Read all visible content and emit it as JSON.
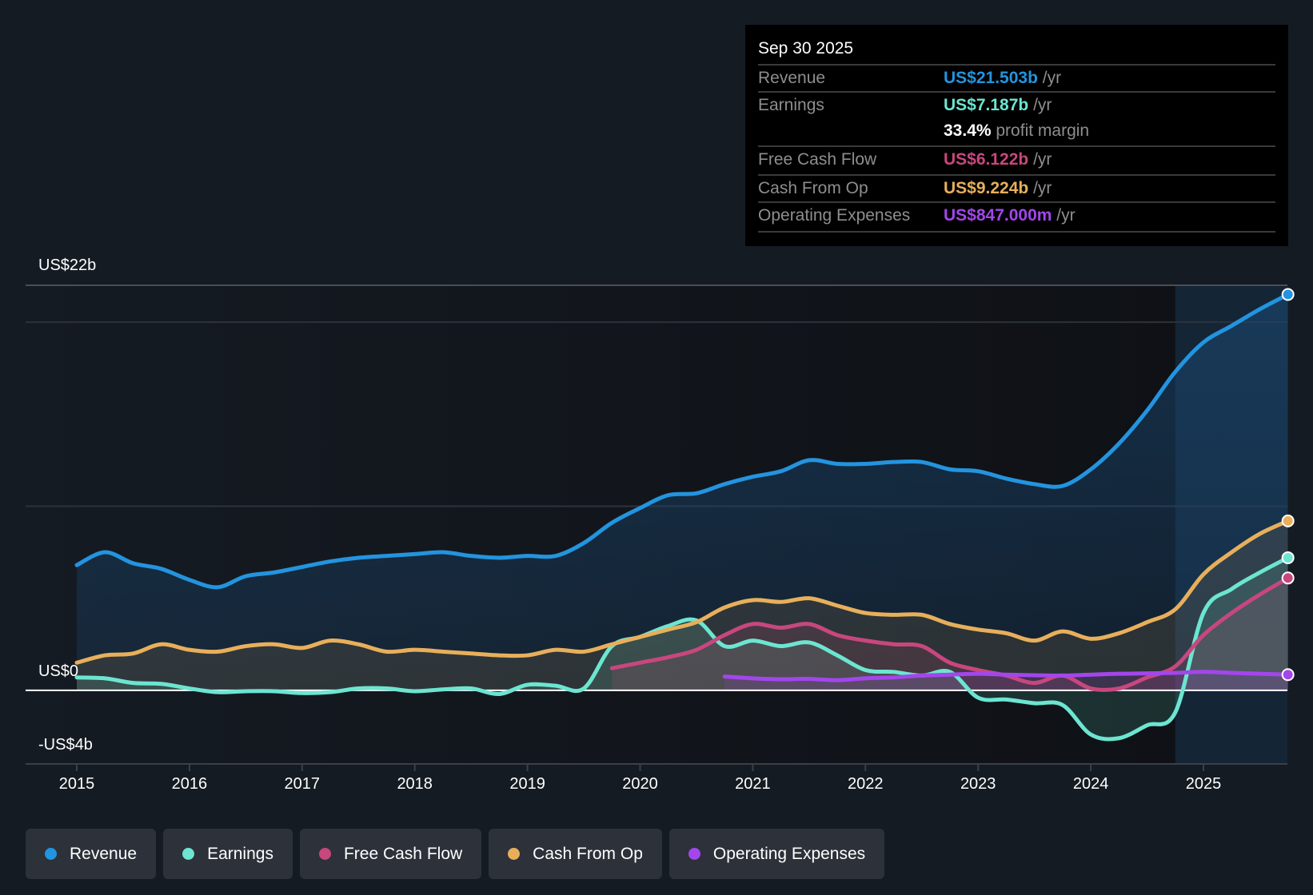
{
  "tooltip": {
    "date": "Sep 30 2025",
    "rows": [
      {
        "label": "Revenue",
        "value": "US$21.503b",
        "unit": " /yr",
        "color": "#2394df"
      },
      {
        "label": "Earnings",
        "value": "US$7.187b",
        "unit": " /yr",
        "color": "#6ce5d1"
      },
      {
        "label": "",
        "value": "33.4%",
        "unit": " profit margin",
        "color": "#ffffff"
      },
      {
        "label": "Free Cash Flow",
        "value": "US$6.122b",
        "unit": " /yr",
        "color": "#c7477e"
      },
      {
        "label": "Cash From Op",
        "value": "US$9.224b",
        "unit": " /yr",
        "color": "#e8af5b"
      },
      {
        "label": "Operating Expenses",
        "value": "US$847.000m",
        "unit": " /yr",
        "color": "#a346ec"
      }
    ]
  },
  "legend": [
    {
      "label": "Revenue",
      "color": "#2394df"
    },
    {
      "label": "Earnings",
      "color": "#6ce5d1"
    },
    {
      "label": "Free Cash Flow",
      "color": "#c7477e"
    },
    {
      "label": "Cash From Op",
      "color": "#e8af5b"
    },
    {
      "label": "Operating Expenses",
      "color": "#a346ec"
    }
  ],
  "chart_data": {
    "type": "line",
    "title": "",
    "xlabel": "",
    "ylabel": "",
    "y_tick_labels": {
      "top": "US$22b",
      "zero": "US$0",
      "bottom": "-US$4b"
    },
    "ylim": [
      -4,
      22
    ],
    "gridlines": [
      22,
      20,
      10,
      0
    ],
    "x_ticks": [
      "2015",
      "2016",
      "2017",
      "2018",
      "2019",
      "2020",
      "2021",
      "2022",
      "2023",
      "2024",
      "2025"
    ],
    "xlim": [
      2015,
      2025.75
    ],
    "forecast_shade_start": 2024.75,
    "series": [
      {
        "name": "Revenue",
        "color": "#2394df",
        "x": [
          2015,
          2015.25,
          2015.5,
          2015.75,
          2016,
          2016.25,
          2016.5,
          2016.75,
          2017,
          2017.25,
          2017.5,
          2017.75,
          2018,
          2018.25,
          2018.5,
          2018.75,
          2019,
          2019.25,
          2019.5,
          2019.75,
          2020,
          2020.25,
          2020.5,
          2020.75,
          2021,
          2021.25,
          2021.5,
          2021.75,
          2022,
          2022.25,
          2022.5,
          2022.75,
          2023,
          2023.25,
          2023.5,
          2023.75,
          2024,
          2024.25,
          2024.5,
          2024.75,
          2025,
          2025.25,
          2025.5,
          2025.75
        ],
        "values": [
          6.8,
          7.5,
          6.9,
          6.6,
          6.0,
          5.6,
          6.2,
          6.4,
          6.7,
          7.0,
          7.2,
          7.3,
          7.4,
          7.5,
          7.3,
          7.2,
          7.3,
          7.3,
          8.0,
          9.1,
          9.9,
          10.6,
          10.7,
          11.2,
          11.6,
          11.9,
          12.5,
          12.3,
          12.3,
          12.4,
          12.4,
          12.0,
          11.9,
          11.5,
          11.2,
          11.1,
          12.0,
          13.4,
          15.2,
          17.3,
          18.9,
          19.8,
          20.7,
          21.5
        ]
      },
      {
        "name": "Earnings",
        "color": "#6ce5d1",
        "x": [
          2015,
          2015.25,
          2015.5,
          2015.75,
          2016,
          2016.25,
          2016.5,
          2016.75,
          2017,
          2017.25,
          2017.5,
          2017.75,
          2018,
          2018.25,
          2018.5,
          2018.75,
          2019,
          2019.25,
          2019.5,
          2019.75,
          2020,
          2020.25,
          2020.5,
          2020.75,
          2021,
          2021.25,
          2021.5,
          2021.75,
          2022,
          2022.25,
          2022.5,
          2022.75,
          2023,
          2023.25,
          2023.5,
          2023.75,
          2024,
          2024.25,
          2024.5,
          2024.75,
          2025,
          2025.25,
          2025.5,
          2025.75
        ],
        "values": [
          0.7,
          0.65,
          0.4,
          0.35,
          0.1,
          -0.1,
          -0.05,
          -0.05,
          -0.15,
          -0.1,
          0.1,
          0.1,
          -0.05,
          0.05,
          0.1,
          -0.2,
          0.3,
          0.25,
          0.1,
          2.4,
          2.9,
          3.5,
          3.8,
          2.4,
          2.7,
          2.4,
          2.6,
          1.9,
          1.1,
          1.0,
          0.8,
          1.0,
          -0.4,
          -0.5,
          -0.7,
          -0.8,
          -2.4,
          -2.6,
          -1.9,
          -1.2,
          4.2,
          5.5,
          6.4,
          7.2
        ]
      },
      {
        "name": "Free Cash Flow",
        "color": "#c7477e",
        "x": [
          2019.75,
          2020,
          2020.25,
          2020.5,
          2020.75,
          2021,
          2021.25,
          2021.5,
          2021.75,
          2022,
          2022.25,
          2022.5,
          2022.75,
          2023,
          2023.25,
          2023.5,
          2023.75,
          2024,
          2024.25,
          2024.5,
          2024.75,
          2025,
          2025.25,
          2025.5,
          2025.75
        ],
        "values": [
          1.2,
          1.5,
          1.8,
          2.2,
          3.0,
          3.6,
          3.4,
          3.6,
          3.0,
          2.7,
          2.5,
          2.4,
          1.5,
          1.1,
          0.8,
          0.4,
          0.8,
          0.1,
          0.1,
          0.7,
          1.3,
          3.0,
          4.2,
          5.2,
          6.1
        ]
      },
      {
        "name": "Cash From Op",
        "color": "#e8af5b",
        "x": [
          2015,
          2015.25,
          2015.5,
          2015.75,
          2016,
          2016.25,
          2016.5,
          2016.75,
          2017,
          2017.25,
          2017.5,
          2017.75,
          2018,
          2018.25,
          2018.5,
          2018.75,
          2019,
          2019.25,
          2019.5,
          2019.75,
          2020,
          2020.25,
          2020.5,
          2020.75,
          2021,
          2021.25,
          2021.5,
          2021.75,
          2022,
          2022.25,
          2022.5,
          2022.75,
          2023,
          2023.25,
          2023.5,
          2023.75,
          2024,
          2024.25,
          2024.5,
          2024.75,
          2025,
          2025.25,
          2025.5,
          2025.75
        ],
        "values": [
          1.5,
          1.9,
          2.0,
          2.5,
          2.2,
          2.1,
          2.4,
          2.5,
          2.3,
          2.7,
          2.5,
          2.1,
          2.2,
          2.1,
          2.0,
          1.9,
          1.9,
          2.2,
          2.1,
          2.5,
          2.9,
          3.3,
          3.7,
          4.5,
          4.9,
          4.8,
          5.0,
          4.6,
          4.2,
          4.1,
          4.1,
          3.6,
          3.3,
          3.1,
          2.7,
          3.2,
          2.8,
          3.1,
          3.7,
          4.4,
          6.3,
          7.5,
          8.5,
          9.2
        ]
      },
      {
        "name": "Operating Expenses",
        "color": "#a346ec",
        "x": [
          2020.75,
          2021,
          2021.25,
          2021.5,
          2021.75,
          2022,
          2022.25,
          2022.5,
          2022.75,
          2023,
          2023.25,
          2023.5,
          2023.75,
          2024,
          2024.25,
          2024.5,
          2024.75,
          2025,
          2025.25,
          2025.5,
          2025.75
        ],
        "values": [
          0.75,
          0.65,
          0.6,
          0.62,
          0.55,
          0.65,
          0.7,
          0.8,
          0.85,
          0.9,
          0.85,
          0.82,
          0.8,
          0.85,
          0.9,
          0.92,
          0.95,
          1.0,
          0.95,
          0.9,
          0.85
        ]
      }
    ]
  }
}
